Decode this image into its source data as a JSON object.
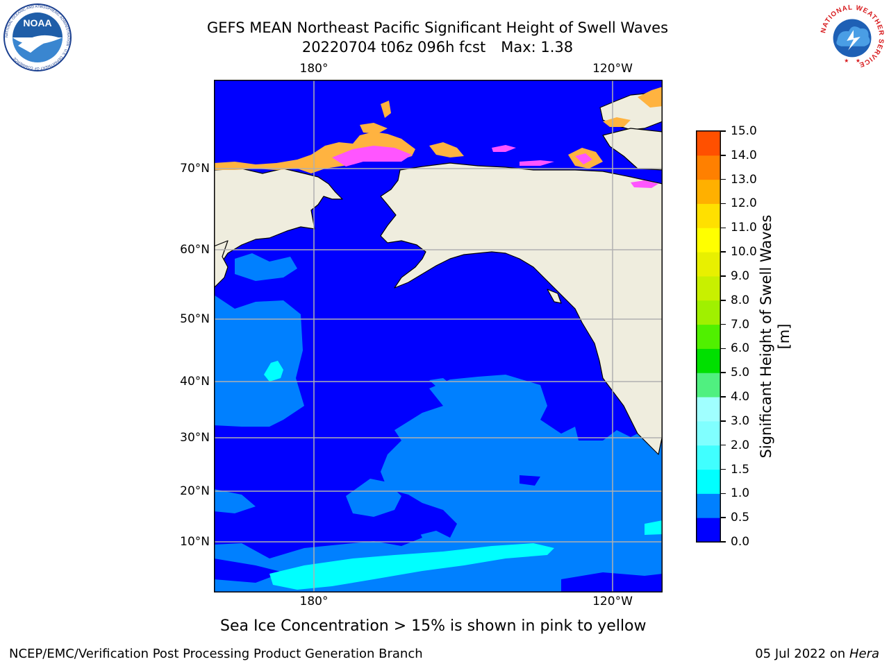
{
  "header": {
    "title_line1": "GEFS MEAN Northeast Pacific Significant Height of Swell Waves",
    "title_date": "20220704 t06z 096h fcst",
    "title_max": "Max: 1.38"
  },
  "logos": {
    "left": "NOAA",
    "left_ring_text": "NATIONAL OCEANIC AND ATMOSPHERIC ADMINISTRATION · U.S. DEPARTMENT OF COMMERCE",
    "right_ring_text": "NATIONAL WEATHER SERVICE"
  },
  "map": {
    "lon_labels": [
      "180°",
      "120°W"
    ],
    "lat_labels": [
      "70°N",
      "60°N",
      "50°N",
      "40°N",
      "30°N",
      "20°N",
      "10°N"
    ],
    "colors": {
      "land": "#efedde",
      "ocean_band_0_0_5": "#0000ff",
      "ocean_band_0_5_1_0": "#0080ff",
      "ocean_band_1_0_1_5": "#00ffff",
      "sea_ice_pink": "#ff55ff",
      "sea_ice_yellow": "#ffb340",
      "grid": "#b0b0b0"
    }
  },
  "colorbar": {
    "title": "Significant Height of Swell Waves [m]",
    "ticks": [
      "15.0",
      "14.0",
      "13.0",
      "12.0",
      "11.0",
      "10.0",
      "9.0",
      "8.0",
      "7.0",
      "6.0",
      "5.0",
      "4.0",
      "3.0",
      "2.0",
      "1.5",
      "1.0",
      "0.5",
      "0.0"
    ],
    "colors_bottom_to_top": [
      "#0000ff",
      "#0080ff",
      "#00ffff",
      "#40ffff",
      "#80ffff",
      "#a0ffff",
      "#50f080",
      "#00e000",
      "#50f000",
      "#a0f000",
      "#c8f000",
      "#e8f000",
      "#ffff00",
      "#ffe000",
      "#ffb000",
      "#ff8000",
      "#ff5000",
      "#ff2000",
      "#ff0000"
    ]
  },
  "note": "Sea Ice Concentration > 15% is shown in pink to yellow",
  "footer": {
    "left": "NCEP/EMC/Verification Post Processing Product Generation Branch",
    "right_date": "05 Jul 2022 on",
    "right_machine": "Hera"
  }
}
